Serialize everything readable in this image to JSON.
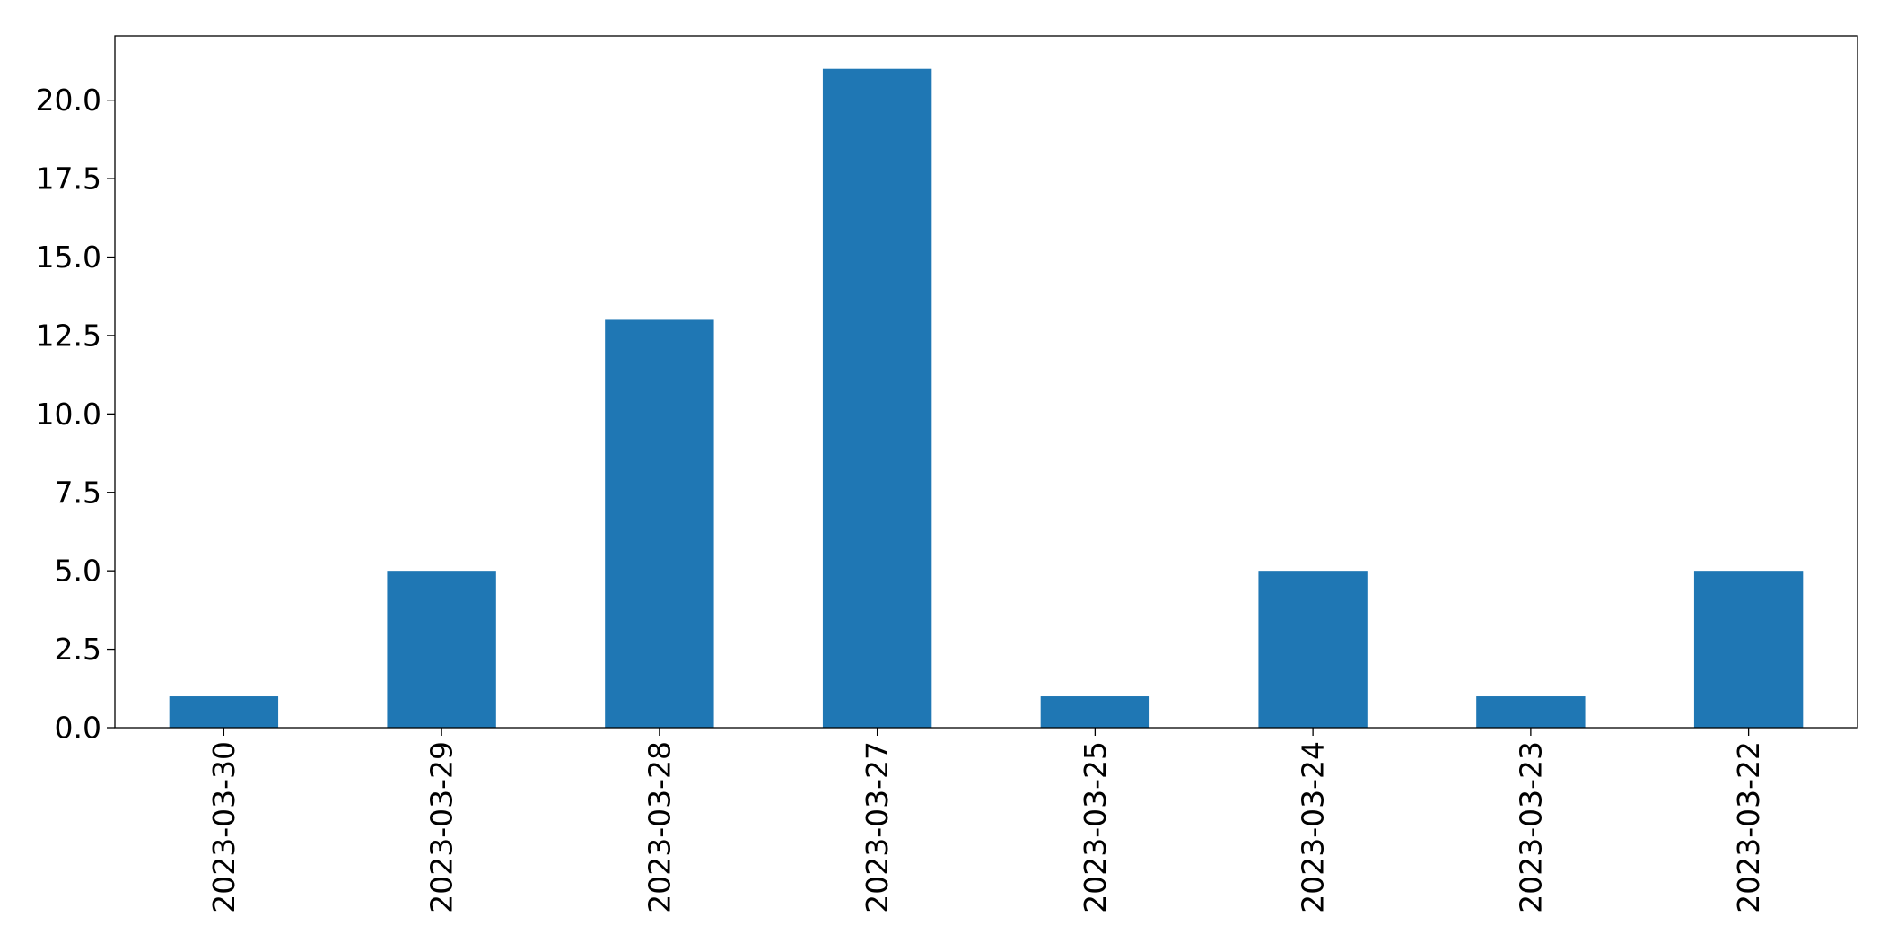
{
  "chart_data": {
    "type": "bar",
    "categories": [
      "2023-03-30",
      "2023-03-29",
      "2023-03-28",
      "2023-03-27",
      "2023-03-25",
      "2023-03-24",
      "2023-03-23",
      "2023-03-22"
    ],
    "values": [
      1,
      5,
      13,
      21,
      1,
      5,
      1,
      5
    ],
    "title": "",
    "xlabel": "",
    "ylabel": "",
    "ylim": [
      0,
      22.05
    ],
    "yticks": [
      0.0,
      2.5,
      5.0,
      7.5,
      10.0,
      12.5,
      15.0,
      17.5,
      20.0
    ],
    "ytick_labels": [
      "0.0",
      "2.5",
      "5.0",
      "7.5",
      "10.0",
      "12.5",
      "15.0",
      "17.5",
      "20.0"
    ],
    "grid": false,
    "legend": "none",
    "bar_color": "#1f77b4"
  }
}
